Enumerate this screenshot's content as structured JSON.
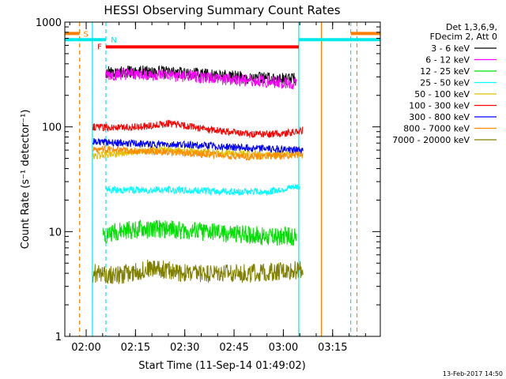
{
  "chart_data": {
    "type": "line",
    "title": "HESSI Observing Summary Count Rates",
    "xlabel": "Start Time (11-Sep-14 01:49:02)",
    "ylabel": "Count Rate (s⁻¹ detector⁻¹)",
    "y_scale": "log",
    "ylim": [
      1,
      1000
    ],
    "xlim_minutes": [
      113.5,
      209.5
    ],
    "x_ticks": [
      {
        "minute": 120,
        "label": "02:00"
      },
      {
        "minute": 135,
        "label": "02:15"
      },
      {
        "minute": 150,
        "label": "02:30"
      },
      {
        "minute": 165,
        "label": "02:45"
      },
      {
        "minute": 180,
        "label": "03:00"
      },
      {
        "minute": 195,
        "label": "03:15"
      }
    ],
    "y_ticks": [
      {
        "value": 1,
        "label": "1"
      },
      {
        "value": 10,
        "label": "10"
      },
      {
        "value": 100,
        "label": "100"
      },
      {
        "value": 1000,
        "label": "1000"
      }
    ],
    "legend_header": [
      "Det 1,3,6,9,",
      "FDecim 2, Att 0"
    ],
    "legend_position": "right",
    "date_stamp": "13-Feb-2017 14:50",
    "series": [
      {
        "name": "3 - 6 keV",
        "color": "#000000",
        "x": [
          126,
          135,
          145,
          155,
          165,
          175,
          184
        ],
        "y": [
          330,
          340,
          330,
          320,
          300,
          290,
          285
        ]
      },
      {
        "name": "6 - 12 keV",
        "color": "#ff00ff",
        "x": [
          126,
          135,
          145,
          155,
          165,
          175,
          184
        ],
        "y": [
          310,
          320,
          310,
          300,
          280,
          270,
          260
        ]
      },
      {
        "name": "12 - 25 keV",
        "color": "#00e000",
        "x": [
          125,
          135,
          145,
          155,
          165,
          175,
          184
        ],
        "y": [
          9.5,
          10.5,
          10.5,
          10,
          9.5,
          9,
          9
        ]
      },
      {
        "name": "25 - 50 keV",
        "color": "#00ffff",
        "x": [
          126,
          135,
          145,
          155,
          165,
          175,
          185
        ],
        "y": [
          25,
          25,
          25,
          24.5,
          24,
          24,
          27
        ]
      },
      {
        "name": "50 - 100 keV",
        "color": "#e0c000",
        "x": [
          122,
          125,
          135,
          145,
          155,
          165,
          175,
          185
        ],
        "y": [
          52,
          54,
          58,
          60,
          58,
          56,
          54,
          56
        ]
      },
      {
        "name": "100 - 300 keV",
        "color": "#ff0000",
        "x": [
          122,
          130,
          140,
          145,
          150,
          160,
          170,
          180,
          186
        ],
        "y": [
          100,
          98,
          102,
          108,
          102,
          92,
          85,
          86,
          92
        ]
      },
      {
        "name": "300 - 800 keV",
        "color": "#0000ff",
        "x": [
          122,
          130,
          140,
          150,
          160,
          170,
          180,
          186
        ],
        "y": [
          73,
          70,
          68,
          68,
          65,
          63,
          61,
          60
        ]
      },
      {
        "name": "800 - 7000 keV",
        "color": "#ff8c00",
        "x": [
          122,
          130,
          140,
          150,
          160,
          170,
          180,
          186
        ],
        "y": [
          62,
          60,
          58,
          56,
          54,
          52,
          53,
          54
        ]
      },
      {
        "name": "7000 - 20000 keV",
        "color": "#808000",
        "x": [
          122,
          130,
          140,
          150,
          160,
          170,
          180,
          186
        ],
        "y": [
          4,
          3.8,
          4.5,
          4,
          4,
          4,
          4.2,
          4.3
        ]
      }
    ],
    "flags": [
      {
        "name": "S",
        "color": "#ff7f00",
        "intervals": [
          [
            113.5,
            118.0
          ],
          [
            200.5,
            209.5
          ]
        ],
        "level": 780
      },
      {
        "name": "N",
        "color": "#00e8e8",
        "intervals": [
          [
            113.5,
            126.0
          ],
          [
            184.7,
            209.5
          ]
        ],
        "level": 680
      },
      {
        "name": "F",
        "color": "#ff0000",
        "intervals": [
          [
            126.0,
            184.7
          ]
        ],
        "level": 580
      }
    ],
    "vertical_markers": [
      {
        "x": 118.0,
        "color": "#ff7f00",
        "style": "dashed"
      },
      {
        "x": 121.9,
        "color": "#00e8e8",
        "style": "solid"
      },
      {
        "x": 126.0,
        "color": "#00e8e8",
        "style": "dashed"
      },
      {
        "x": 184.7,
        "color": "#00e8e8",
        "style": "solid"
      },
      {
        "x": 191.6,
        "color": "#ff7f00",
        "style": "solid"
      },
      {
        "x": 200.5,
        "color": "#00e8e8",
        "style": "dashed"
      },
      {
        "x": 202.4,
        "color": "#ff7f00",
        "style": "dashed"
      }
    ]
  }
}
